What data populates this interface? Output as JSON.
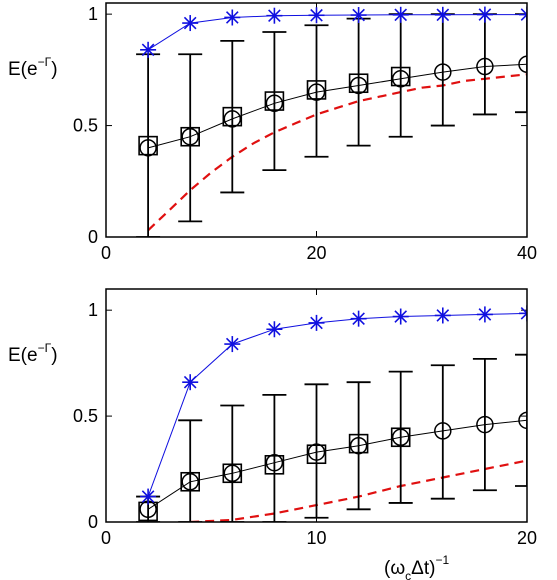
{
  "colors": {
    "upper": "#1010e0",
    "model": "#000000",
    "lower": "#e01010",
    "axis": "#000000"
  },
  "markers": {
    "upper": "asterisk-icon",
    "model": "circle-icon",
    "data": "square-icon"
  },
  "chart_data": [
    {
      "type": "line",
      "ylabel": "E(e^{-Γ})",
      "ylabel_parts": {
        "base": "E(e",
        "sup": "−Γ",
        "close": ")"
      },
      "xlabel": "",
      "xlim": [
        0,
        40
      ],
      "ylim": [
        0,
        1.05
      ],
      "xticks": [
        0,
        20,
        40
      ],
      "xtick_labels": [
        "0",
        "20",
        "40"
      ],
      "yticks": [
        0,
        0.5,
        1
      ],
      "ytick_labels": [
        "0",
        "0.5",
        "1"
      ],
      "grid": false,
      "series": [
        {
          "role": "upper",
          "x": [
            4,
            8,
            12,
            16,
            20,
            24,
            28,
            32,
            36,
            40
          ],
          "y": [
            0.84,
            0.96,
            0.985,
            0.993,
            0.995,
            0.996,
            0.997,
            0.997,
            0.998,
            0.998
          ]
        },
        {
          "role": "model",
          "x": [
            4,
            8,
            12,
            16,
            20,
            24,
            28,
            32,
            36,
            40
          ],
          "y": [
            0.4,
            0.45,
            0.53,
            0.6,
            0.65,
            0.68,
            0.71,
            0.74,
            0.765,
            0.775
          ],
          "err_low": [
            0.0,
            0.07,
            0.2,
            0.3,
            0.36,
            0.41,
            0.45,
            0.5,
            0.55,
            0.56
          ],
          "err_high": [
            0.82,
            0.82,
            0.88,
            0.92,
            0.95,
            0.98,
            1.0,
            1.0,
            1.0,
            1.0
          ]
        },
        {
          "role": "data",
          "x": [
            4,
            8,
            12,
            16,
            20,
            24,
            28
          ],
          "y": [
            0.41,
            0.45,
            0.54,
            0.61,
            0.66,
            0.69,
            0.72
          ]
        },
        {
          "role": "lower",
          "x": [
            4,
            6,
            8,
            10,
            12,
            14,
            16,
            18,
            20,
            22,
            24,
            26,
            28,
            30,
            32,
            34,
            36,
            38,
            40
          ],
          "y": [
            0.03,
            0.12,
            0.21,
            0.29,
            0.36,
            0.42,
            0.47,
            0.51,
            0.55,
            0.58,
            0.61,
            0.63,
            0.65,
            0.67,
            0.68,
            0.7,
            0.71,
            0.72,
            0.73
          ]
        }
      ]
    },
    {
      "type": "line",
      "ylabel": "E(e^{-Γ})",
      "ylabel_parts": {
        "base": "E(e",
        "sup": "−Γ",
        "close": ")"
      },
      "xlabel": "(ωcΔt)^-1",
      "xlabel_parts": {
        "open": "(ω",
        "sub": "c",
        "mid": "Δt)",
        "sup": "−1"
      },
      "xlim": [
        0,
        20
      ],
      "ylim": [
        0,
        1.1
      ],
      "xticks": [
        0,
        10,
        20
      ],
      "xtick_labels": [
        "0",
        "10",
        "20"
      ],
      "yticks": [
        0,
        0.5,
        1
      ],
      "ytick_labels": [
        "0",
        "0.5",
        "1"
      ],
      "grid": false,
      "series": [
        {
          "role": "upper",
          "x": [
            2,
            4,
            6,
            8,
            10,
            12,
            14,
            16,
            18,
            20
          ],
          "y": [
            0.12,
            0.66,
            0.84,
            0.91,
            0.94,
            0.96,
            0.97,
            0.975,
            0.98,
            0.985
          ]
        },
        {
          "role": "model",
          "x": [
            2,
            4,
            6,
            8,
            10,
            12,
            14,
            16,
            18,
            20
          ],
          "y": [
            0.06,
            0.19,
            0.23,
            0.28,
            0.33,
            0.36,
            0.4,
            0.43,
            0.46,
            0.48
          ],
          "err_low": [
            0.0,
            0.0,
            0.0,
            0.0,
            0.02,
            0.06,
            0.09,
            0.11,
            0.15,
            0.17
          ],
          "err_high": [
            0.12,
            0.48,
            0.55,
            0.6,
            0.65,
            0.66,
            0.71,
            0.74,
            0.77,
            0.79
          ]
        },
        {
          "role": "data",
          "x": [
            2,
            4,
            6,
            8,
            10,
            12,
            14
          ],
          "y": [
            0.05,
            0.19,
            0.23,
            0.27,
            0.32,
            0.37,
            0.4
          ]
        },
        {
          "role": "lower",
          "x": [
            4,
            6,
            8,
            10,
            12,
            14,
            16,
            18,
            20
          ],
          "y": [
            0.0,
            0.01,
            0.04,
            0.08,
            0.12,
            0.17,
            0.21,
            0.25,
            0.29
          ]
        }
      ]
    }
  ]
}
